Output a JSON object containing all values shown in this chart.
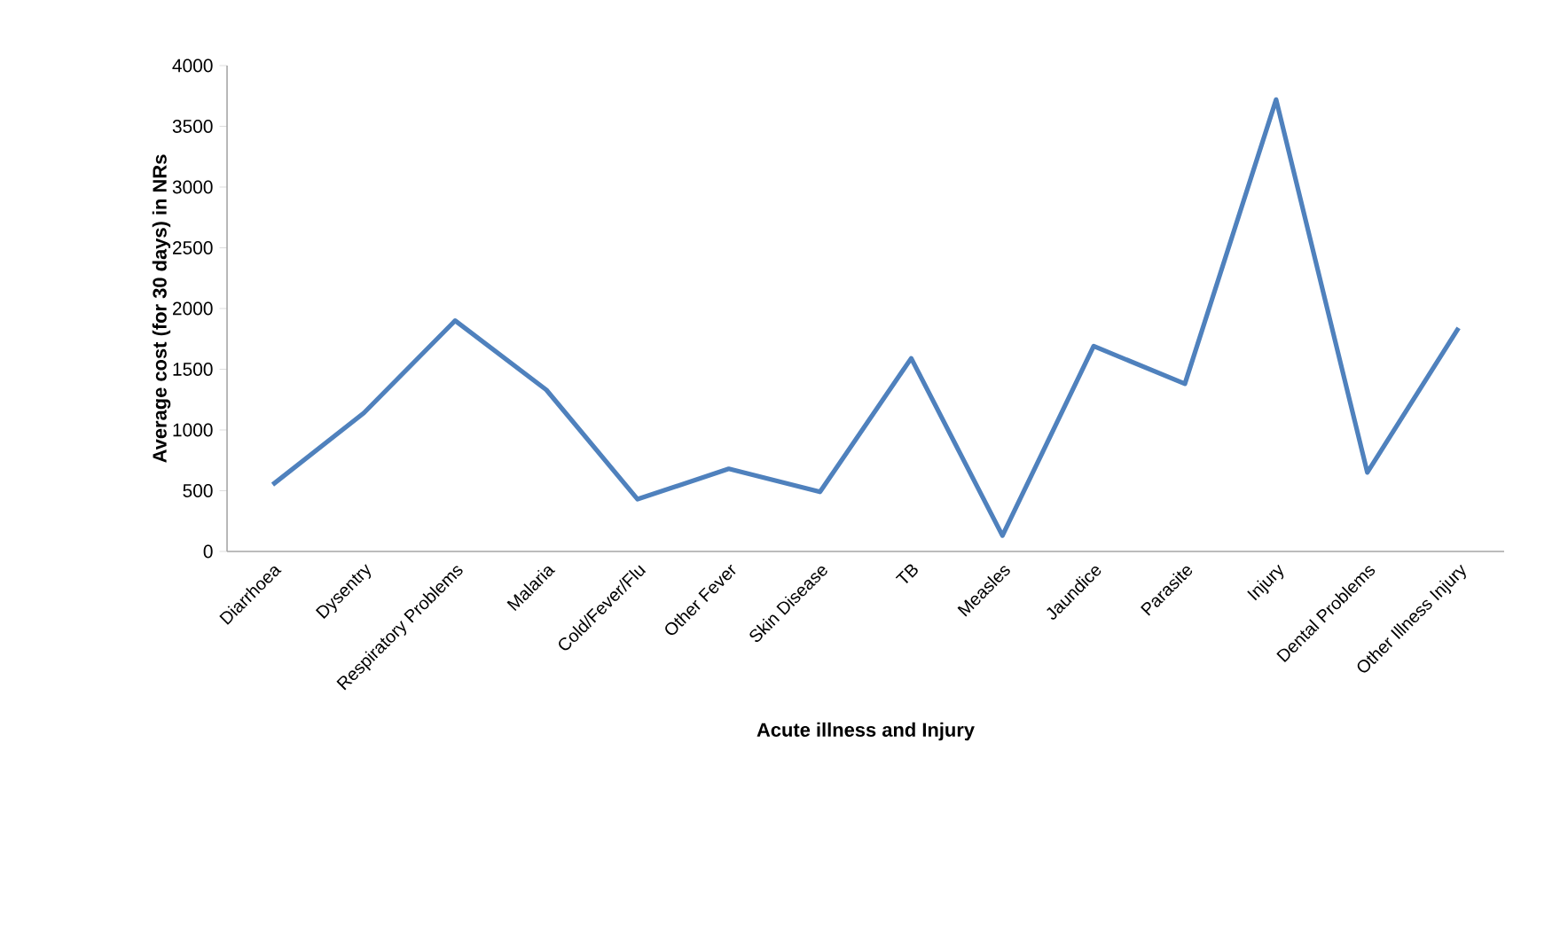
{
  "chart_data": {
    "type": "line",
    "xlabel": "Acute illness and Injury",
    "ylabel": "Average cost (for 30 days) in NRs",
    "categories": [
      "Diarrhoea",
      "Dysentry",
      "Respiratory Problems",
      "Malaria",
      "Cold/Fever/Flu",
      "Other Fever",
      "Skin Disease",
      "TB",
      "Measles",
      "Jaundice",
      "Parasite",
      "Injury",
      "Dental Problems",
      "Other Illness Injury"
    ],
    "series": [
      {
        "color": "#4f81bd",
        "values": [
          550,
          1140,
          1900,
          1330,
          430,
          680,
          490,
          1590,
          130,
          1690,
          1380,
          3720,
          650,
          1840
        ]
      }
    ],
    "ylim": [
      0,
      4000
    ],
    "yticks": [
      0,
      500,
      1000,
      1500,
      2000,
      2500,
      3000,
      3500,
      4000
    ],
    "grid": false,
    "marker": "none",
    "line_style": "solid"
  }
}
